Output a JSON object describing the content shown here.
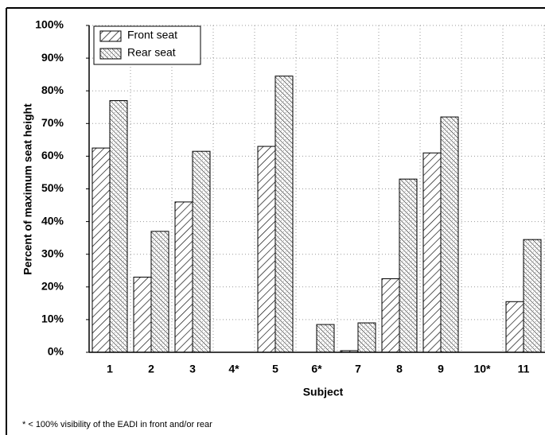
{
  "chart_data": {
    "type": "bar",
    "x_label": "Subject",
    "y_label": "Percent of maximum seat height",
    "footnote": "* < 100% visibility of the EADI in front and/or rear",
    "categories": [
      "1",
      "2",
      "3",
      "4*",
      "5",
      "6*",
      "7",
      "8",
      "9",
      "10*",
      "11"
    ],
    "series": [
      {
        "name": "Front seat",
        "color": "#000000",
        "hatch": "forward-diagonal",
        "values": [
          62.5,
          23,
          46,
          0,
          63,
          0,
          0.5,
          22.5,
          61,
          0,
          15.5
        ]
      },
      {
        "name": "Rear seat",
        "color": "#000000",
        "hatch": "dense-backward-diagonal",
        "values": [
          77,
          37,
          61.5,
          0,
          84.5,
          8.5,
          9,
          53,
          72,
          0,
          34.5
        ]
      }
    ],
    "ylim": [
      0,
      100
    ],
    "yticks": [
      {
        "value": 0,
        "label": "0%"
      },
      {
        "value": 10,
        "label": "10%"
      },
      {
        "value": 20,
        "label": "20%"
      },
      {
        "value": 30,
        "label": "30%"
      },
      {
        "value": 40,
        "label": "40%"
      },
      {
        "value": 50,
        "label": "50%"
      },
      {
        "value": 60,
        "label": "60%"
      },
      {
        "value": 70,
        "label": "70%"
      },
      {
        "value": 80,
        "label": "80%"
      },
      {
        "value": 90,
        "label": "90%"
      },
      {
        "value": 100,
        "label": "100%"
      }
    ],
    "grid": true,
    "legend": "top-left"
  }
}
